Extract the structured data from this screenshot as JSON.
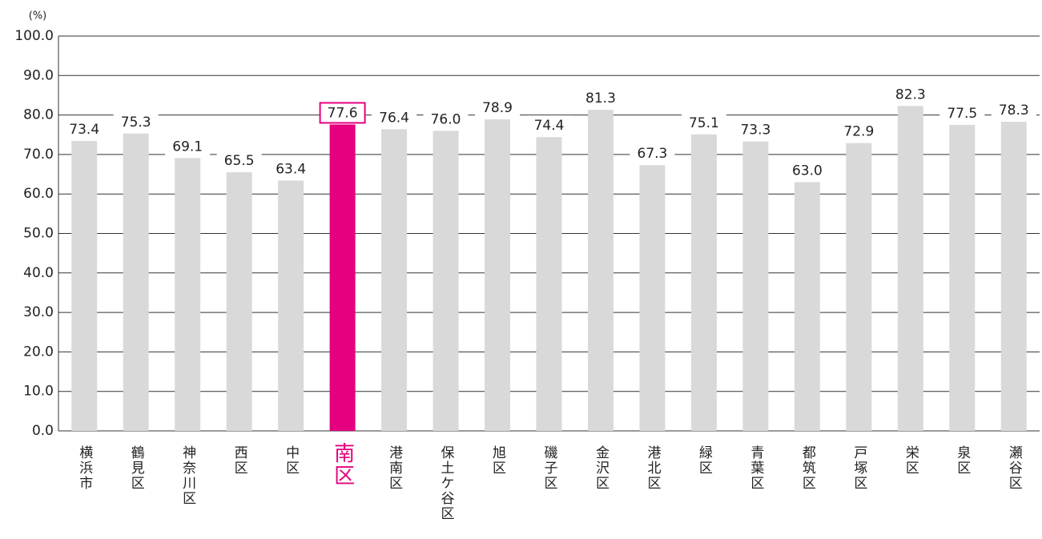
{
  "chart_data": {
    "type": "bar",
    "y_unit": "(%)",
    "categories": [
      "横浜市",
      "鶴見区",
      "神奈川区",
      "西区",
      "中区",
      "南区",
      "港南区",
      "保土ケ谷区",
      "旭区",
      "磯子区",
      "金沢区",
      "港北区",
      "緑区",
      "青葉区",
      "都筑区",
      "戸塚区",
      "栄区",
      "泉区",
      "瀬谷区"
    ],
    "values": [
      73.4,
      75.3,
      69.1,
      65.5,
      63.4,
      77.6,
      76.4,
      76.0,
      78.9,
      74.4,
      81.3,
      67.3,
      75.1,
      73.3,
      63.0,
      72.9,
      82.3,
      77.5,
      78.3
    ],
    "value_labels": [
      "73.4",
      "75.3",
      "69.1",
      "65.5",
      "63.4",
      "77.6",
      "76.4",
      "76.0",
      "78.9",
      "74.4",
      "81.3",
      "67.3",
      "75.1",
      "73.3",
      "63.0",
      "72.9",
      "82.3",
      "77.5",
      "78.3"
    ],
    "color": "#d9d9d9",
    "highlight": 5,
    "highlight_color": "#e4007f",
    "ylim": [
      0,
      100
    ],
    "yticks": [
      {
        "value": 0,
        "label": "0.0"
      },
      {
        "value": 10,
        "label": "10.0"
      },
      {
        "value": 20,
        "label": "20.0"
      },
      {
        "value": 30,
        "label": "30.0"
      },
      {
        "value": 40,
        "label": "40.0"
      },
      {
        "value": 50,
        "label": "50.0"
      },
      {
        "value": 60,
        "label": "60.0"
      },
      {
        "value": 70,
        "label": "70.0"
      },
      {
        "value": 80,
        "label": "80.0"
      },
      {
        "value": 90,
        "label": "90.0"
      },
      {
        "value": 100,
        "label": "100.0"
      }
    ],
    "grid": true
  }
}
